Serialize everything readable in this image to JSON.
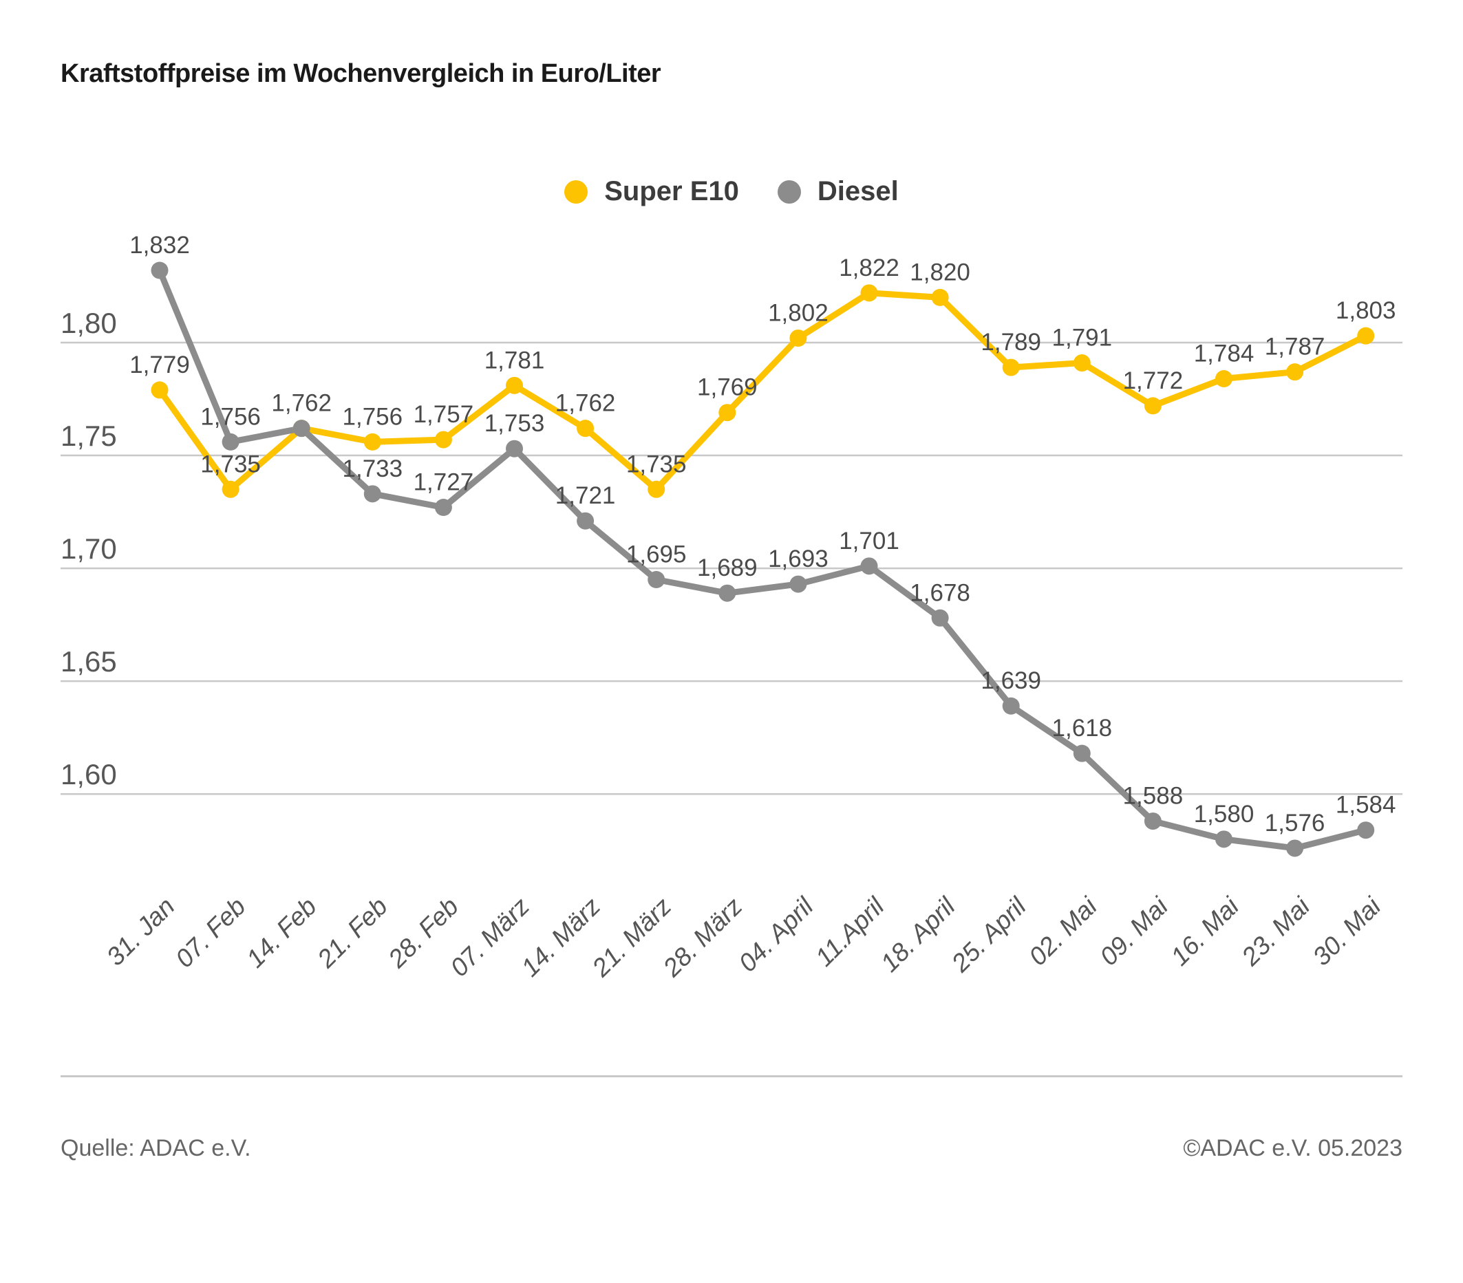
{
  "title": "Kraftstoffpreise im Wochenvergleich in Euro/Liter",
  "legend": [
    {
      "label": "Super E10",
      "color": "#FDC300"
    },
    {
      "label": "Diesel",
      "color": "#8C8C8C"
    }
  ],
  "footer": {
    "source": "Quelle: ADAC e.V.",
    "copyright": "©ADAC e.V. 05.2023"
  },
  "chart_data": {
    "type": "line",
    "title": "Kraftstoffpreise im Wochenvergleich in Euro/Liter",
    "xlabel": "",
    "ylabel": "Euro/Liter",
    "grid": true,
    "legend_position": "top-center",
    "ylim": [
      1.55,
      1.85
    ],
    "categories": [
      "31. Jan",
      "07. Feb",
      "14. Feb",
      "21. Feb",
      "28. Feb",
      "07. März",
      "14. März",
      "21. März",
      "28. März",
      "04. April",
      "11.April",
      "18. April",
      "25. April",
      "02. Mai",
      "09. Mai",
      "16. Mai",
      "23. Mai",
      "30. Mai"
    ],
    "yticks": [
      {
        "value": 1.8,
        "label": "1,80"
      },
      {
        "value": 1.75,
        "label": "1,75"
      },
      {
        "value": 1.7,
        "label": "1,70"
      },
      {
        "value": 1.65,
        "label": "1,65"
      },
      {
        "value": 1.6,
        "label": "1,60"
      }
    ],
    "series": [
      {
        "name": "Super E10",
        "color": "#FDC300",
        "values": [
          1.779,
          1.735,
          1.762,
          1.756,
          1.757,
          1.781,
          1.762,
          1.735,
          1.769,
          1.802,
          1.822,
          1.82,
          1.789,
          1.791,
          1.772,
          1.784,
          1.787,
          1.803
        ],
        "labels": [
          "1,779",
          "1,735",
          "1,762",
          "1,756",
          "1,757",
          "1,781",
          "1,762",
          "1,735",
          "1,769",
          "1,802",
          "1,822",
          "1,820",
          "1,789",
          "1,791",
          "1,772",
          "1,784",
          "1,787",
          "1,803"
        ]
      },
      {
        "name": "Diesel",
        "color": "#8C8C8C",
        "values": [
          1.832,
          1.756,
          1.762,
          1.733,
          1.727,
          1.753,
          1.721,
          1.695,
          1.689,
          1.693,
          1.701,
          1.678,
          1.639,
          1.618,
          1.588,
          1.58,
          1.576,
          1.584
        ],
        "labels": [
          "1,832",
          "1,756",
          "1,762",
          "1,733",
          "1,727",
          "1,753",
          "1,721",
          "1,695",
          "1,689",
          "1,693",
          "1,701",
          "1,678",
          "1,639",
          "1,618",
          "1,588",
          "1,580",
          "1,576",
          "1,584"
        ]
      }
    ]
  }
}
